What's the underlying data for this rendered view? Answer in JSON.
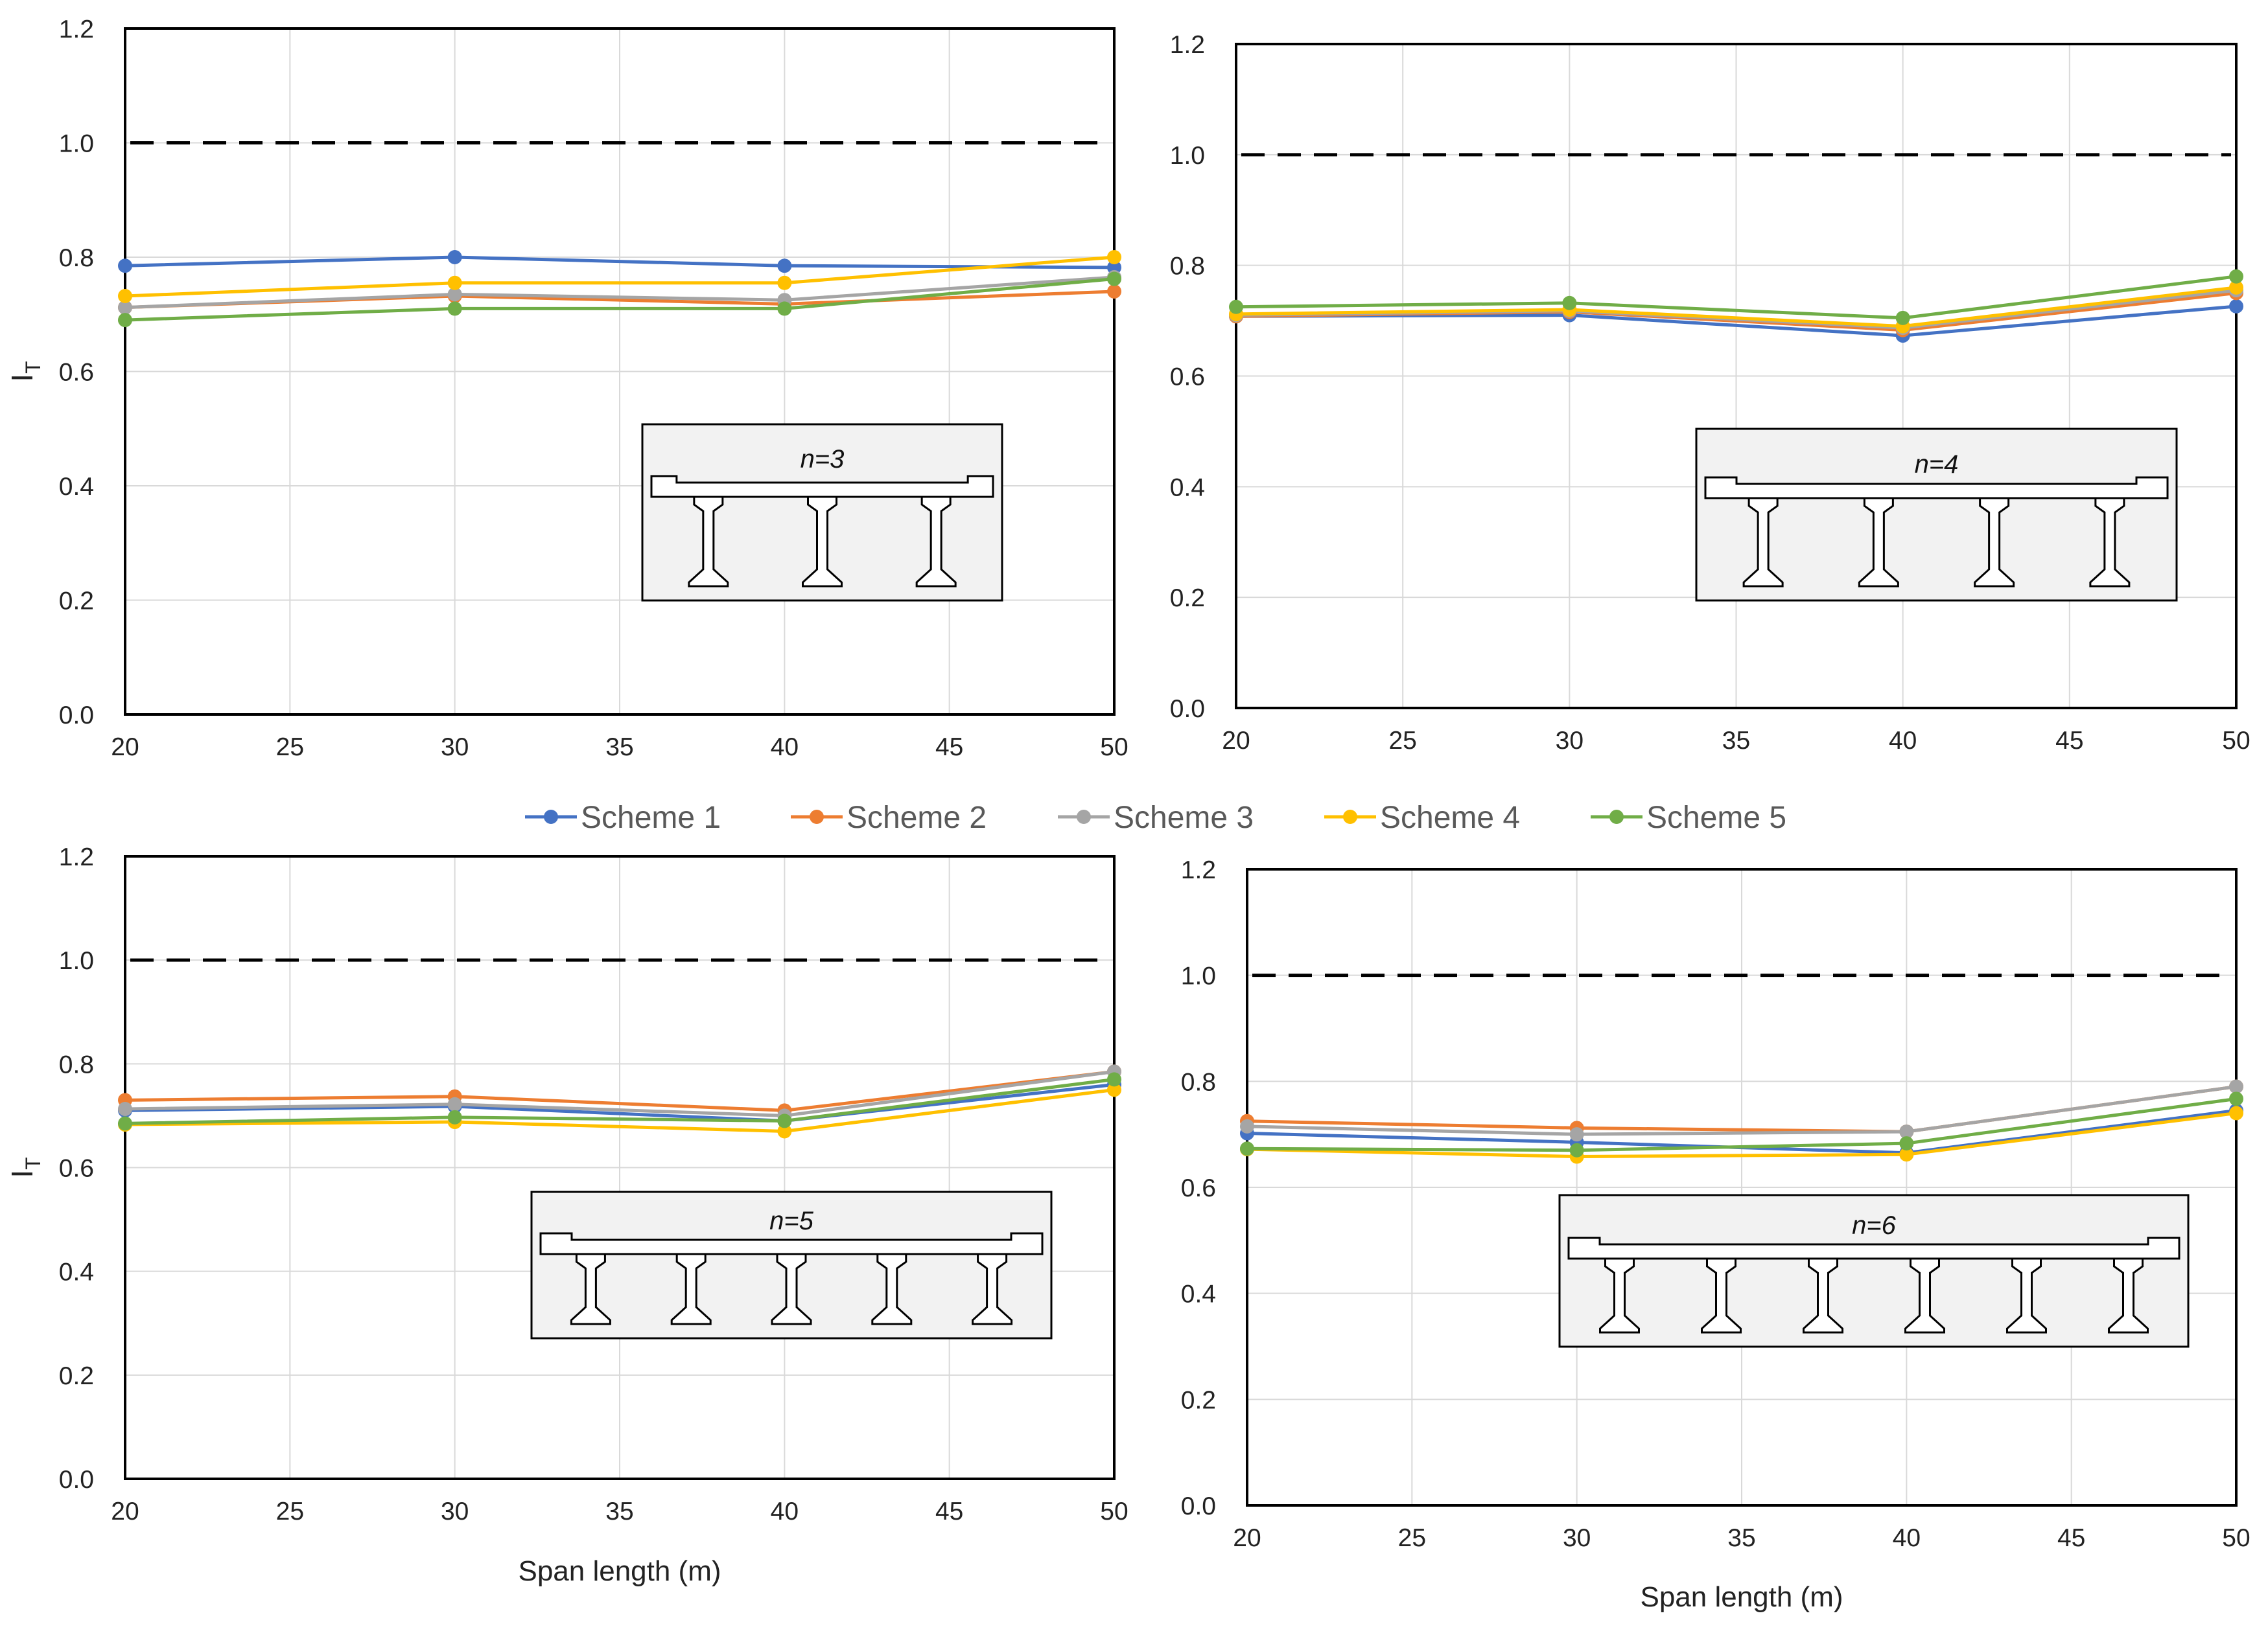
{
  "legend": {
    "series": [
      {
        "name": "Scheme 1",
        "color": "#4472C4"
      },
      {
        "name": "Scheme 2",
        "color": "#ED7D31"
      },
      {
        "name": "Scheme 3",
        "color": "#A5A5A5"
      },
      {
        "name": "Scheme 4",
        "color": "#FFC000"
      },
      {
        "name": "Scheme 5",
        "color": "#70AD47"
      }
    ]
  },
  "colors": {
    "scheme1": "#4472C4",
    "scheme2": "#ED7D31",
    "scheme3": "#A5A5A5",
    "scheme4": "#FFC000",
    "scheme5": "#70AD47",
    "reference_line": "#000000",
    "grid": "#D9D9D9",
    "inset_fill": "#F2F2F2"
  },
  "chart_data": [
    {
      "type": "line",
      "panel": "top-left",
      "ylabel": "IT",
      "xlabel": "",
      "xlim": [
        20,
        50
      ],
      "ylim": [
        0,
        1.2
      ],
      "xticks": [
        20,
        25,
        30,
        35,
        40,
        45,
        50
      ],
      "yticks": [
        0.0,
        0.2,
        0.4,
        0.6,
        0.8,
        1.0,
        1.2
      ],
      "grid": true,
      "reference_line": {
        "y": 1.0,
        "style": "dashed"
      },
      "inset_label": "n=3",
      "girders": 3,
      "x": [
        20,
        30,
        40,
        50
      ],
      "series": [
        {
          "name": "Scheme 1",
          "values": [
            0.785,
            0.8,
            0.785,
            0.782
          ]
        },
        {
          "name": "Scheme 2",
          "values": [
            0.712,
            0.732,
            0.718,
            0.74
          ]
        },
        {
          "name": "Scheme 3",
          "values": [
            0.712,
            0.735,
            0.725,
            0.765
          ]
        },
        {
          "name": "Scheme 4",
          "values": [
            0.732,
            0.755,
            0.755,
            0.8
          ]
        },
        {
          "name": "Scheme 5",
          "values": [
            0.69,
            0.71,
            0.71,
            0.762
          ]
        }
      ]
    },
    {
      "type": "line",
      "panel": "top-right",
      "ylabel": "",
      "xlabel": "",
      "xlim": [
        20,
        50
      ],
      "ylim": [
        0,
        1.2
      ],
      "xticks": [
        20,
        25,
        30,
        35,
        40,
        45,
        50
      ],
      "yticks": [
        0.0,
        0.2,
        0.4,
        0.6,
        0.8,
        1.0,
        1.2
      ],
      "grid": true,
      "reference_line": {
        "y": 1.0,
        "style": "dashed"
      },
      "inset_label": "n=4",
      "girders": 4,
      "x": [
        20,
        30,
        40,
        50
      ],
      "series": [
        {
          "name": "Scheme 1",
          "values": [
            0.708,
            0.71,
            0.673,
            0.726
          ]
        },
        {
          "name": "Scheme 2",
          "values": [
            0.708,
            0.716,
            0.683,
            0.75
          ]
        },
        {
          "name": "Scheme 3",
          "values": [
            0.71,
            0.718,
            0.687,
            0.755
          ]
        },
        {
          "name": "Scheme 4",
          "values": [
            0.712,
            0.72,
            0.69,
            0.76
          ]
        },
        {
          "name": "Scheme 5",
          "values": [
            0.725,
            0.732,
            0.705,
            0.78
          ]
        }
      ]
    },
    {
      "type": "line",
      "panel": "bottom-left",
      "ylabel": "IT",
      "xlabel": "Span length (m)",
      "xlim": [
        20,
        50
      ],
      "ylim": [
        0,
        1.2
      ],
      "xticks": [
        20,
        25,
        30,
        35,
        40,
        45,
        50
      ],
      "yticks": [
        0.0,
        0.2,
        0.4,
        0.6,
        0.8,
        1.0,
        1.2
      ],
      "grid": true,
      "reference_line": {
        "y": 1.0,
        "style": "dashed"
      },
      "inset_label": "n=5",
      "girders": 5,
      "x": [
        20,
        30,
        40,
        50
      ],
      "series": [
        {
          "name": "Scheme 1",
          "values": [
            0.71,
            0.718,
            0.69,
            0.76
          ]
        },
        {
          "name": "Scheme 2",
          "values": [
            0.73,
            0.737,
            0.71,
            0.785
          ]
        },
        {
          "name": "Scheme 3",
          "values": [
            0.713,
            0.722,
            0.7,
            0.785
          ]
        },
        {
          "name": "Scheme 4",
          "values": [
            0.683,
            0.688,
            0.67,
            0.75
          ]
        },
        {
          "name": "Scheme 5",
          "values": [
            0.685,
            0.697,
            0.69,
            0.77
          ]
        }
      ]
    },
    {
      "type": "line",
      "panel": "bottom-right",
      "ylabel": "",
      "xlabel": "Span length (m)",
      "xlim": [
        20,
        50
      ],
      "ylim": [
        0,
        1.2
      ],
      "xticks": [
        20,
        25,
        30,
        35,
        40,
        45,
        50
      ],
      "yticks": [
        0.0,
        0.2,
        0.4,
        0.6,
        0.8,
        1.0,
        1.2
      ],
      "grid": true,
      "reference_line": {
        "y": 1.0,
        "style": "dashed"
      },
      "inset_label": "n=6",
      "girders": 6,
      "x": [
        20,
        30,
        40,
        50
      ],
      "series": [
        {
          "name": "Scheme 1",
          "values": [
            0.702,
            0.685,
            0.665,
            0.745
          ]
        },
        {
          "name": "Scheme 2",
          "values": [
            0.725,
            0.712,
            0.705,
            0.79
          ]
        },
        {
          "name": "Scheme 3",
          "values": [
            0.715,
            0.7,
            0.705,
            0.79
          ]
        },
        {
          "name": "Scheme 4",
          "values": [
            0.672,
            0.658,
            0.662,
            0.74
          ]
        },
        {
          "name": "Scheme 5",
          "values": [
            0.673,
            0.67,
            0.683,
            0.767
          ]
        }
      ]
    }
  ]
}
